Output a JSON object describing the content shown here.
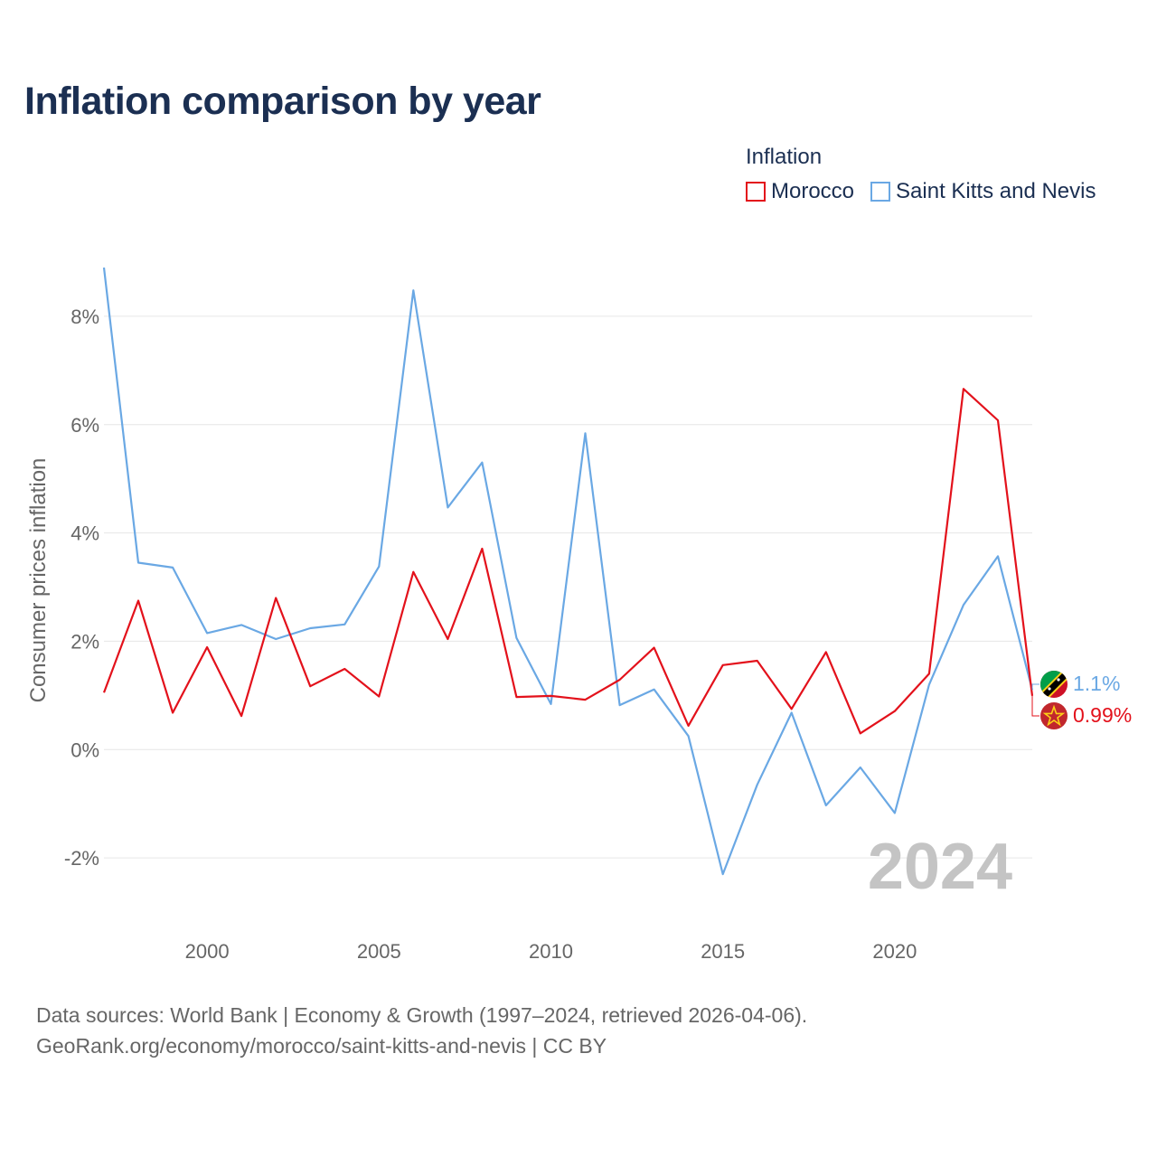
{
  "title": "Inflation comparison by year",
  "legend": {
    "title": "Inflation",
    "items": [
      {
        "label": "Morocco",
        "color": "#e3111b"
      },
      {
        "label": "Saint Kitts and Nevis",
        "color": "#6aa8e4"
      }
    ]
  },
  "watermark_year": "2024",
  "footer": {
    "line1": "Data sources: World Bank | Economy & Growth (1997–2024, retrieved 2026-04-06).",
    "line2": "GeoRank.org/economy/morocco/saint-kitts-and-nevis | CC BY"
  },
  "chart_data": {
    "type": "line",
    "title": "Inflation comparison by year",
    "xlabel": "",
    "ylabel": "Consumer prices inflation",
    "xlim": [
      1997,
      2024
    ],
    "ylim": [
      -3.1,
      9.0
    ],
    "x_ticks": [
      2000,
      2005,
      2010,
      2015,
      2020
    ],
    "y_ticks": [
      -2,
      0,
      2,
      4,
      6,
      8
    ],
    "y_tick_labels": [
      "-2%",
      "0%",
      "2%",
      "4%",
      "6%",
      "8%"
    ],
    "x": [
      1997,
      1998,
      1999,
      2000,
      2001,
      2002,
      2003,
      2004,
      2005,
      2006,
      2007,
      2008,
      2009,
      2010,
      2011,
      2012,
      2013,
      2014,
      2015,
      2016,
      2017,
      2018,
      2019,
      2020,
      2021,
      2022,
      2023,
      2024
    ],
    "series": [
      {
        "name": "Morocco",
        "color": "#e3111b",
        "end_label": "0.99%",
        "values": [
          1.05,
          2.75,
          0.68,
          1.89,
          0.62,
          2.8,
          1.17,
          1.49,
          0.98,
          3.28,
          2.04,
          3.71,
          0.97,
          0.99,
          0.92,
          1.29,
          1.88,
          0.44,
          1.56,
          1.64,
          0.75,
          1.8,
          0.3,
          0.71,
          1.4,
          6.66,
          6.08,
          0.99
        ]
      },
      {
        "name": "Saint Kitts and Nevis",
        "color": "#6aa8e4",
        "end_label": "1.1%",
        "values": [
          8.9,
          3.45,
          3.36,
          2.15,
          2.3,
          2.04,
          2.24,
          2.31,
          3.38,
          8.48,
          4.47,
          5.3,
          2.06,
          0.84,
          5.84,
          0.82,
          1.11,
          0.25,
          -2.3,
          -0.65,
          0.68,
          -1.03,
          -0.33,
          -1.17,
          1.2,
          2.67,
          3.57,
          1.1
        ]
      }
    ]
  }
}
